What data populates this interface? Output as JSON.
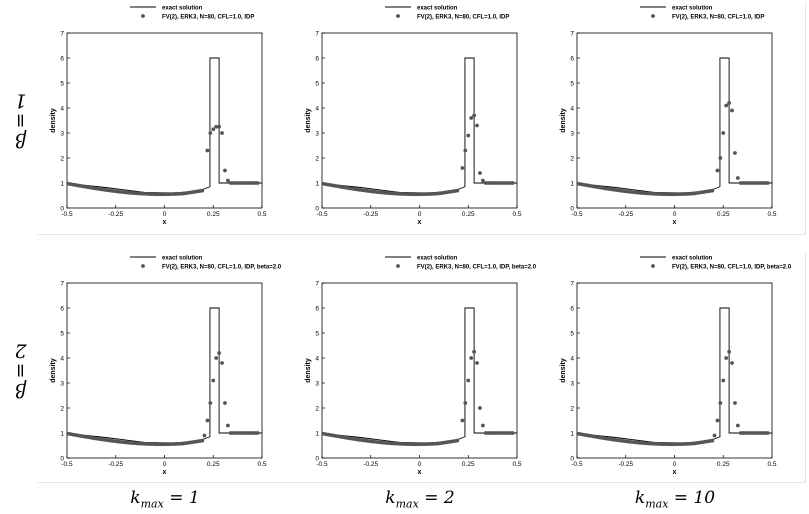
{
  "row_labels": [
    {
      "symbol": "β",
      "value": "1"
    },
    {
      "symbol": "β",
      "value": "2"
    }
  ],
  "col_labels": [
    {
      "base": "k",
      "sub": "max",
      "value": "1"
    },
    {
      "base": "k",
      "sub": "max",
      "value": "2"
    },
    {
      "base": "k",
      "sub": "max",
      "value": "10"
    }
  ],
  "chart_data": [
    {
      "type": "scatter",
      "row": 0,
      "col": 0,
      "legend": [
        "exact solution",
        "FV(2), ERK3, N=80, CFL=1.0, IDP"
      ],
      "xlabel": "x",
      "ylabel": "density",
      "xlim": [
        -0.5,
        0.5
      ],
      "ylim": [
        0,
        7
      ],
      "xticks": [
        "-0.5",
        "-0.25",
        "0",
        "0.25",
        "0.5"
      ],
      "yticks": [
        "0",
        "1",
        "2",
        "3",
        "4",
        "5",
        "6",
        "7"
      ],
      "peak": [
        [
          0.22,
          2.3
        ],
        [
          0.235,
          3.0
        ],
        [
          0.25,
          3.15
        ],
        [
          0.265,
          3.25
        ],
        [
          0.28,
          3.25
        ],
        [
          0.295,
          3.0
        ],
        [
          0.31,
          1.5
        ],
        [
          0.325,
          1.1
        ]
      ]
    },
    {
      "type": "scatter",
      "row": 0,
      "col": 1,
      "legend": [
        "exact solution",
        "FV(2), ERK3, N=80, CFL=1.0, IDP"
      ],
      "xlabel": "x",
      "ylabel": "density",
      "xlim": [
        -0.5,
        0.5
      ],
      "ylim": [
        0,
        7
      ],
      "xticks": [
        "-0.5",
        "-0.25",
        "0",
        "0.25",
        "0.5"
      ],
      "yticks": [
        "0",
        "1",
        "2",
        "3",
        "4",
        "5",
        "6",
        "7"
      ],
      "peak": [
        [
          0.22,
          1.6
        ],
        [
          0.235,
          2.3
        ],
        [
          0.25,
          2.9
        ],
        [
          0.265,
          3.6
        ],
        [
          0.28,
          3.7
        ],
        [
          0.295,
          3.3
        ],
        [
          0.31,
          1.4
        ],
        [
          0.325,
          1.1
        ]
      ]
    },
    {
      "type": "scatter",
      "row": 0,
      "col": 2,
      "legend": [
        "exact solution",
        "FV(2), ERK3, N=80, CFL=1.0, IDP"
      ],
      "xlabel": "x",
      "ylabel": "density",
      "xlim": [
        -0.5,
        0.5
      ],
      "ylim": [
        0,
        7
      ],
      "xticks": [
        "-0.5",
        "-0.25",
        "0",
        "0.25",
        "0.5"
      ],
      "yticks": [
        "0",
        "1",
        "2",
        "3",
        "4",
        "5",
        "6",
        "7"
      ],
      "peak": [
        [
          0.22,
          1.5
        ],
        [
          0.235,
          2.0
        ],
        [
          0.25,
          3.0
        ],
        [
          0.265,
          4.1
        ],
        [
          0.28,
          4.2
        ],
        [
          0.295,
          3.9
        ],
        [
          0.31,
          2.2
        ],
        [
          0.325,
          1.2
        ]
      ]
    },
    {
      "type": "scatter",
      "row": 1,
      "col": 0,
      "legend": [
        "exact solution",
        "FV(2), ERK3, N=80, CFL=1.0, IDP, beta=2.0"
      ],
      "xlabel": "x",
      "ylabel": "density",
      "xlim": [
        -0.5,
        0.5
      ],
      "ylim": [
        0,
        7
      ],
      "xticks": [
        "-0.5",
        "-0.25",
        "0",
        "0.25",
        "0.5"
      ],
      "yticks": [
        "0",
        "1",
        "2",
        "3",
        "4",
        "5",
        "6",
        "7"
      ],
      "peak": [
        [
          0.205,
          0.9
        ],
        [
          0.22,
          1.5
        ],
        [
          0.235,
          2.2
        ],
        [
          0.25,
          3.1
        ],
        [
          0.265,
          4.0
        ],
        [
          0.28,
          4.2
        ],
        [
          0.295,
          3.8
        ],
        [
          0.31,
          2.2
        ],
        [
          0.325,
          1.3
        ]
      ]
    },
    {
      "type": "scatter",
      "row": 1,
      "col": 1,
      "legend": [
        "exact solution",
        "FV(2), ERK3, N=80, CFL=1.0, IDP, beta=2.0"
      ],
      "xlabel": "x",
      "ylabel": "density",
      "xlim": [
        -0.5,
        0.5
      ],
      "ylim": [
        0,
        7
      ],
      "xticks": [
        "-0.5",
        "-0.25",
        "0",
        "0.25",
        "0.5"
      ],
      "yticks": [
        "0",
        "1",
        "2",
        "3",
        "4",
        "5",
        "6",
        "7"
      ],
      "peak": [
        [
          0.22,
          1.5
        ],
        [
          0.235,
          2.2
        ],
        [
          0.25,
          3.1
        ],
        [
          0.265,
          4.0
        ],
        [
          0.28,
          4.25
        ],
        [
          0.295,
          3.8
        ],
        [
          0.31,
          2.0
        ],
        [
          0.325,
          1.3
        ]
      ]
    },
    {
      "type": "scatter",
      "row": 1,
      "col": 2,
      "legend": [
        "exact solution",
        "FV(2), ERK3, N=80, CFL=1.0, IDP, beta=2.0"
      ],
      "xlabel": "x",
      "ylabel": "density",
      "xlim": [
        -0.5,
        0.5
      ],
      "ylim": [
        0,
        7
      ],
      "xticks": [
        "-0.5",
        "-0.25",
        "0",
        "0.25",
        "0.5"
      ],
      "yticks": [
        "0",
        "1",
        "2",
        "3",
        "4",
        "5",
        "6",
        "7"
      ],
      "peak": [
        [
          0.205,
          0.9
        ],
        [
          0.22,
          1.5
        ],
        [
          0.235,
          2.2
        ],
        [
          0.25,
          3.1
        ],
        [
          0.265,
          4.0
        ],
        [
          0.28,
          4.25
        ],
        [
          0.295,
          3.8
        ],
        [
          0.31,
          2.2
        ],
        [
          0.325,
          1.3
        ]
      ]
    }
  ]
}
